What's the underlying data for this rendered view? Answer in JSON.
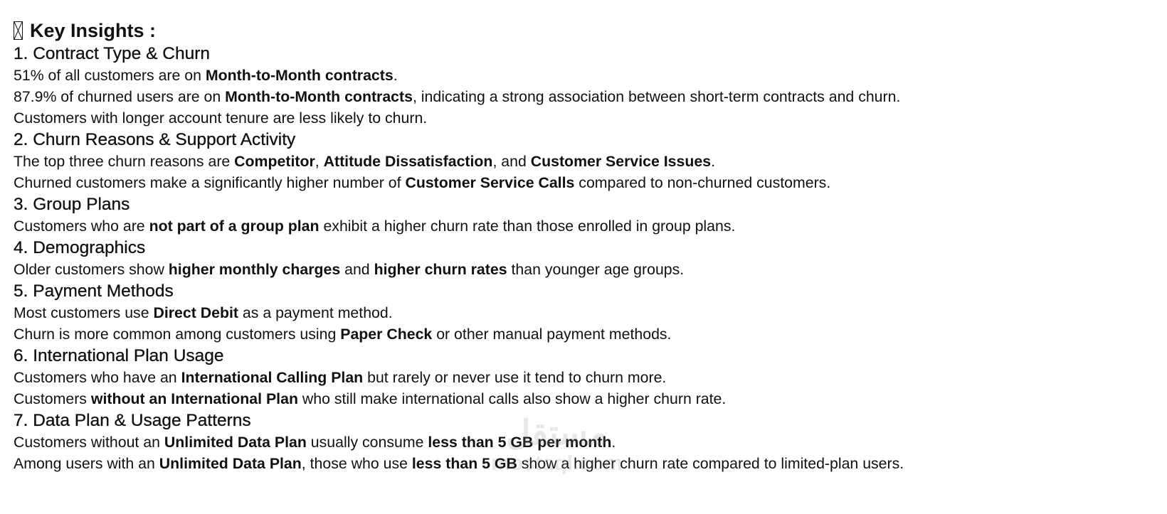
{
  "title": "Key Insights :",
  "title_icon": "missing-glyph-box",
  "sections": [
    {
      "heading": "1. Contract Type & Churn",
      "lines": [
        [
          {
            "t": "51% of all customers are on "
          },
          {
            "t": "Month-to-Month contracts",
            "b": true
          },
          {
            "t": "."
          }
        ],
        [
          {
            "t": "87.9% of churned users are on "
          },
          {
            "t": "Month-to-Month contracts",
            "b": true
          },
          {
            "t": ", indicating a strong association between short-term contracts and churn."
          }
        ],
        [
          {
            "t": "Customers with longer account tenure are less likely to churn."
          }
        ]
      ]
    },
    {
      "heading": "2. Churn Reasons & Support Activity",
      "lines": [
        [
          {
            "t": "The top three churn reasons are "
          },
          {
            "t": "Competitor",
            "b": true
          },
          {
            "t": ", "
          },
          {
            "t": "Attitude Dissatisfaction",
            "b": true
          },
          {
            "t": ", and "
          },
          {
            "t": "Customer Service Issues",
            "b": true
          },
          {
            "t": "."
          }
        ],
        [
          {
            "t": "Churned customers make a significantly higher number of "
          },
          {
            "t": "Customer Service Calls",
            "b": true
          },
          {
            "t": " compared to non-churned customers."
          }
        ]
      ]
    },
    {
      "heading": "3. Group Plans",
      "lines": [
        [
          {
            "t": "Customers who are "
          },
          {
            "t": "not part of a group plan",
            "b": true
          },
          {
            "t": " exhibit a higher churn rate than those enrolled in group plans."
          }
        ]
      ]
    },
    {
      "heading": "4. Demographics",
      "lines": [
        [
          {
            "t": "Older customers show "
          },
          {
            "t": "higher monthly charges",
            "b": true
          },
          {
            "t": " and "
          },
          {
            "t": "higher churn rates",
            "b": true
          },
          {
            "t": " than younger age groups."
          }
        ]
      ]
    },
    {
      "heading": "5. Payment Methods",
      "lines": [
        [
          {
            "t": "Most customers use "
          },
          {
            "t": "Direct Debit",
            "b": true
          },
          {
            "t": " as a payment method."
          }
        ],
        [
          {
            "t": "Churn is more common among customers using "
          },
          {
            "t": "Paper Check",
            "b": true
          },
          {
            "t": " or other manual payment methods."
          }
        ]
      ]
    },
    {
      "heading": "6. International Plan Usage",
      "lines": [
        [
          {
            "t": "Customers who have an "
          },
          {
            "t": "International Calling Plan",
            "b": true
          },
          {
            "t": " but rarely or never use it tend to churn more."
          }
        ],
        [
          {
            "t": "Customers "
          },
          {
            "t": "without an International Plan",
            "b": true
          },
          {
            "t": " who still make international calls also show a higher churn rate."
          }
        ]
      ]
    },
    {
      "heading": "7. Data Plan & Usage Patterns",
      "lines": [
        [
          {
            "t": "Customers without an "
          },
          {
            "t": "Unlimited Data Plan",
            "b": true
          },
          {
            "t": " usually consume "
          },
          {
            "t": "less than 5 GB per month",
            "b": true
          },
          {
            "t": "."
          }
        ],
        [
          {
            "t": "Among users with an "
          },
          {
            "t": "Unlimited Data Plan",
            "b": true
          },
          {
            "t": ", those who use "
          },
          {
            "t": "less than 5 GB",
            "b": true
          },
          {
            "t": " show a higher churn rate compared to limited-plan users."
          }
        ]
      ]
    }
  ],
  "watermark": {
    "arabic": "مستقل",
    "latin": "mostaql.com"
  }
}
